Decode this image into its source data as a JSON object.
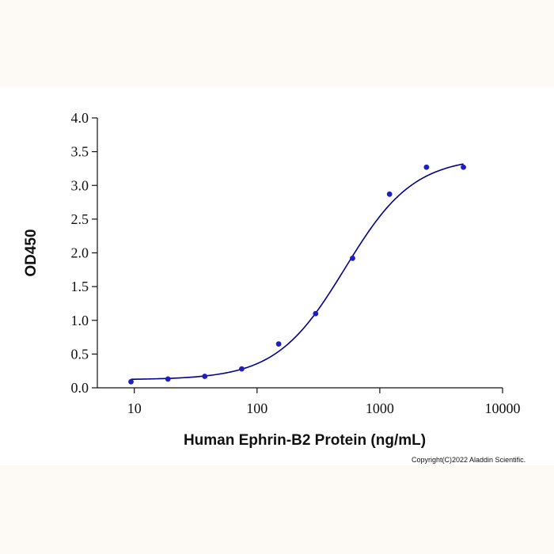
{
  "chart_data": {
    "type": "scatter",
    "title": "",
    "xlabel": "Human Ephrin-B2 Protein (ng/mL)",
    "ylabel": "OD450",
    "x_scale": "log",
    "xlim": [
      5,
      10000
    ],
    "ylim": [
      0,
      4.0
    ],
    "x_ticks": [
      10,
      100,
      1000,
      10000
    ],
    "x_tick_labels": [
      "10",
      "100",
      "1000",
      "10000"
    ],
    "y_ticks": [
      0,
      0.5,
      1.0,
      1.5,
      2.0,
      2.5,
      3.0,
      3.5,
      4.0
    ],
    "y_tick_labels": [
      "0.0",
      "0.5",
      "1.0",
      "1.5",
      "2.0",
      "2.5",
      "3.0",
      "3.5",
      "4.0"
    ],
    "grid": false,
    "legend": "none",
    "series": [
      {
        "x": [
          9.4,
          18.8,
          37.5,
          75,
          150,
          300,
          600,
          1200,
          2400,
          4800
        ],
        "y": [
          0.09,
          0.13,
          0.17,
          0.28,
          0.65,
          1.1,
          1.92,
          2.87,
          3.27,
          3.27
        ],
        "color": "#1f1fbf",
        "fit": "4PL",
        "fit_color": "#00008b"
      }
    ]
  },
  "copyright": "Copyright(C)2022 Aladdin Scientific."
}
